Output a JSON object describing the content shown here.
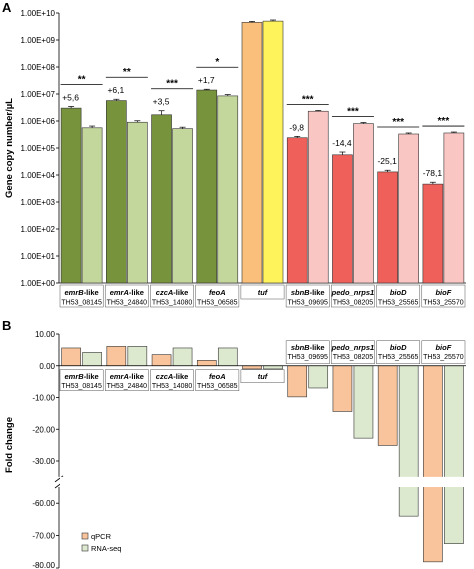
{
  "panels": {
    "a": "A",
    "b": "B"
  },
  "colors": {
    "bar_stroke": "#333333",
    "green_q": "#77933c",
    "green_r": "#c3d69b",
    "yellow_q": "#fac07b",
    "yellow_r": "#fff35c",
    "red_q": "#f0605a",
    "red_r": "#f9c6c3",
    "b_q": "#f9c39b",
    "b_r": "#dce9cf"
  },
  "chart_data": [
    {
      "type": "bar",
      "panel": "A",
      "ylabel": "Gene copy number/µL",
      "y_scale": "log",
      "ylim": [
        1,
        10000000000
      ],
      "yticks": [
        "1.00E+00",
        "1.00E+01",
        "1.00E+02",
        "1.00E+03",
        "1.00E+04",
        "1.00E+05",
        "1.00E+06",
        "1.00E+07",
        "1.00E+08",
        "1.00E+09",
        "1.00E+10"
      ],
      "groups": [
        {
          "gene": "emrB",
          "suffix": "-like",
          "locus": "TH53_08145",
          "color": "green",
          "fold": "+5,6",
          "sig": "**",
          "values": [
            3000000,
            560000
          ],
          "errors": [
            450000,
            90000
          ]
        },
        {
          "gene": "emrA",
          "suffix": "-like",
          "locus": "TH53_24840",
          "color": "green",
          "fold": "+6,1",
          "sig": "**",
          "values": [
            5700000,
            900000
          ],
          "errors": [
            700000,
            120000
          ]
        },
        {
          "gene": "czcA",
          "suffix": "-like",
          "locus": "TH53_14080",
          "color": "green",
          "fold": "+3,5",
          "sig": "***",
          "values": [
            1700000,
            520000
          ],
          "errors": [
            700000,
            70000
          ]
        },
        {
          "gene": "feoA",
          "suffix": "",
          "locus": "TH53_06585",
          "color": "green",
          "fold": "+1,7",
          "sig": "*",
          "values": [
            14000000,
            8500000
          ],
          "errors": [
            1000000,
            1000000
          ]
        },
        {
          "gene": "tuf",
          "suffix": "",
          "locus": "",
          "color": "yellow",
          "fold": "",
          "sig": "",
          "values": [
            4500000000,
            5000000000
          ],
          "errors": [
            400000000,
            500000000
          ]
        },
        {
          "gene": "sbnB",
          "suffix": "-like",
          "locus": "TH53_09695",
          "color": "red",
          "fold": "-9,8",
          "sig": "***",
          "values": [
            240000,
            2300000
          ],
          "errors": [
            30000,
            150000
          ]
        },
        {
          "gene": "pedo_nrps1",
          "suffix": "",
          "locus": "TH53_08205",
          "color": "red",
          "fold": "-14,4",
          "sig": "***",
          "values": [
            56000,
            800000
          ],
          "errors": [
            15000,
            80000
          ]
        },
        {
          "gene": "bioD",
          "suffix": "",
          "locus": "TH53_25565",
          "color": "red",
          "fold": "-25,1",
          "sig": "***",
          "values": [
            13000,
            330000
          ],
          "errors": [
            2000,
            30000
          ]
        },
        {
          "gene": "bioF",
          "suffix": "",
          "locus": "TH53_25570",
          "color": "red",
          "fold": "-78,1",
          "sig": "***",
          "values": [
            4600,
            360000
          ],
          "errors": [
            800,
            30000
          ]
        }
      ]
    },
    {
      "type": "bar",
      "panel": "B",
      "ylabel": "Fold change",
      "axis_break": [
        -35,
        -55
      ],
      "ylim": [
        -80,
        10
      ],
      "yticks_upper": [
        "10.00",
        "0.00",
        "-10.00",
        "-20.00",
        "-30.00"
      ],
      "yticks_lower": [
        "-60.00",
        "-70.00",
        "-80.00"
      ],
      "legend": {
        "position": "bottom-left",
        "entries": [
          "qPCR",
          "RNA-seq"
        ]
      },
      "groups": [
        {
          "gene": "emrB",
          "suffix": "-like",
          "locus": "TH53_08145",
          "label_pos": "below",
          "values": [
            5.6,
            4.2
          ]
        },
        {
          "gene": "emrA",
          "suffix": "-like",
          "locus": "TH53_24840",
          "label_pos": "below",
          "values": [
            6.1,
            6.1
          ]
        },
        {
          "gene": "czcA",
          "suffix": "-like",
          "locus": "TH53_14080",
          "label_pos": "below",
          "values": [
            3.5,
            5.6
          ]
        },
        {
          "gene": "feoA",
          "suffix": "",
          "locus": "TH53_06585",
          "label_pos": "below",
          "values": [
            1.7,
            5.6
          ]
        },
        {
          "gene": "tuf",
          "suffix": "",
          "locus": "",
          "label_pos": "below",
          "values": [
            -1.0,
            -1.0
          ]
        },
        {
          "gene": "sbnB",
          "suffix": "-like",
          "locus": "TH53_09695",
          "label_pos": "above",
          "values": [
            -9.8,
            -7.0
          ]
        },
        {
          "gene": "pedo_nrps1",
          "suffix": "",
          "locus": "TH53_08205",
          "label_pos": "above",
          "values": [
            -14.4,
            -22.8
          ]
        },
        {
          "gene": "bioD",
          "suffix": "",
          "locus": "TH53_25565",
          "label_pos": "above",
          "values": [
            -25.1,
            -64.0
          ]
        },
        {
          "gene": "bioF",
          "suffix": "",
          "locus": "TH53_25570",
          "label_pos": "above",
          "values": [
            -78.1,
            -72.5
          ]
        }
      ]
    }
  ]
}
